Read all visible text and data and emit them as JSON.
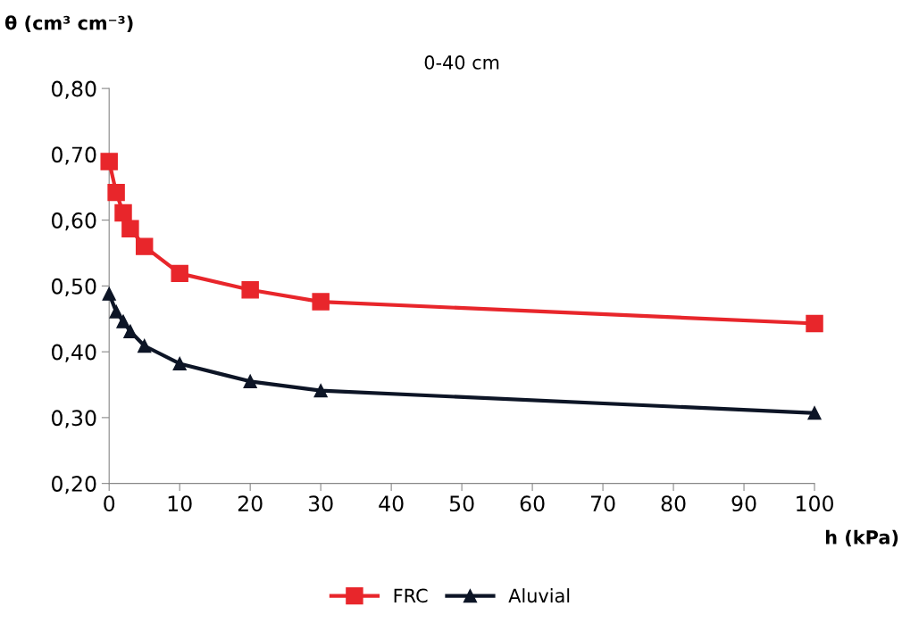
{
  "chart_data": {
    "type": "line",
    "title": "0-40 cm",
    "xlabel": "h (kPa)",
    "ylabel": "θ (cm³ cm⁻³)",
    "series": [
      {
        "name": "FRC",
        "color": "#e8262b",
        "marker": "square",
        "x": [
          0,
          1,
          2,
          3,
          5,
          10,
          20,
          30,
          100
        ],
        "values": [
          0.689,
          0.642,
          0.611,
          0.587,
          0.56,
          0.519,
          0.494,
          0.476,
          0.443
        ]
      },
      {
        "name": "Aluvial",
        "color": "#0d1526",
        "marker": "triangle",
        "x": [
          0,
          1,
          2,
          3,
          5,
          10,
          20,
          30,
          100
        ],
        "values": [
          0.488,
          0.461,
          0.446,
          0.431,
          0.409,
          0.382,
          0.355,
          0.341,
          0.307
        ]
      }
    ],
    "xlim": [
      0,
      100
    ],
    "xticks": [
      0,
      10,
      20,
      30,
      40,
      50,
      60,
      70,
      80,
      90,
      100
    ],
    "ylim": [
      0.2,
      0.8
    ],
    "yticks": [
      {
        "value": 0.2,
        "label": "0,20"
      },
      {
        "value": 0.3,
        "label": "0,30"
      },
      {
        "value": 0.4,
        "label": "0,40"
      },
      {
        "value": 0.5,
        "label": "0,50"
      },
      {
        "value": 0.6,
        "label": "0,60"
      },
      {
        "value": 0.7,
        "label": "0,70"
      },
      {
        "value": 0.8,
        "label": "0,80"
      }
    ],
    "grid": false,
    "legend": "bottom",
    "line_style": "solid"
  }
}
